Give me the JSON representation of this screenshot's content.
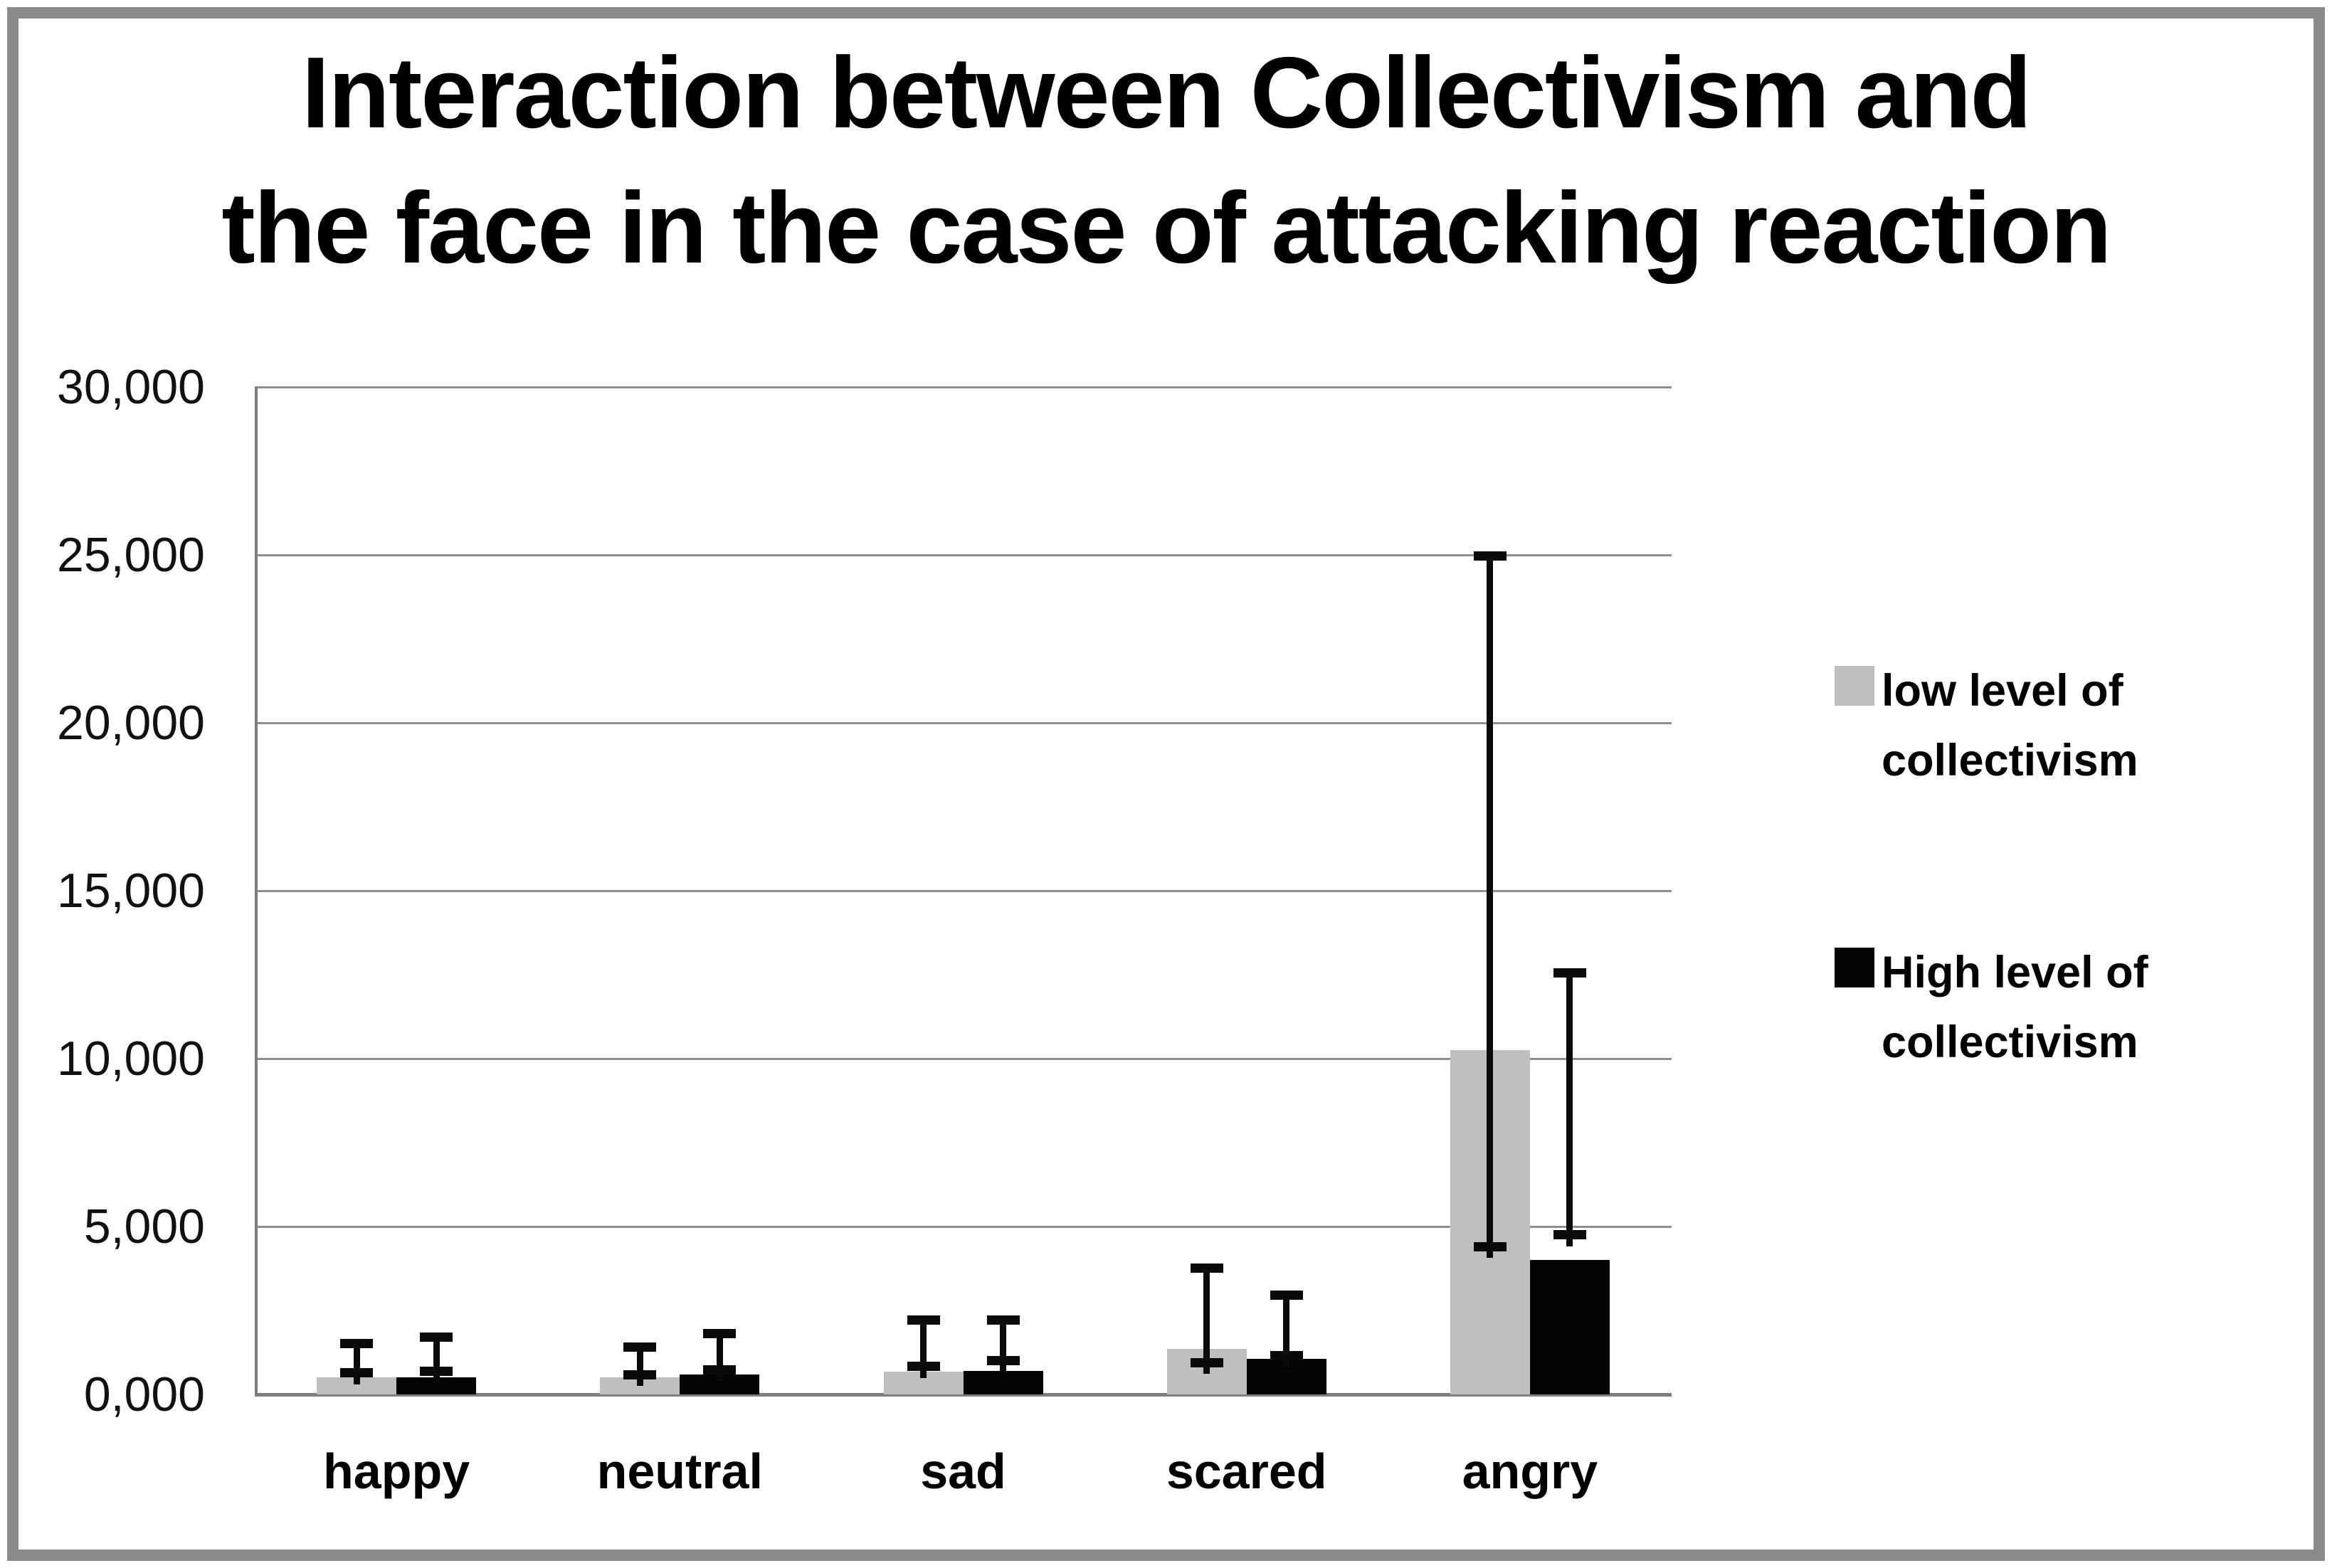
{
  "figure": {
    "title_line1": "Interaction between Collectivism and",
    "title_line2": "the face in the case of attacking reaction"
  },
  "chart_data": {
    "type": "bar",
    "title": "Interaction between Collectivism and the face in the case of attacking reaction",
    "categories": [
      "happy",
      "neutral",
      "sad",
      "scared",
      "angry"
    ],
    "series": [
      {
        "name": "low level of collectivism",
        "color": "#bfbfbf",
        "values": [
          500,
          500,
          680,
          1350,
          10250
        ],
        "error_high": [
          1650,
          1550,
          2350,
          3900,
          25100
        ],
        "error_low": [
          640,
          590,
          830,
          950,
          4400
        ]
      },
      {
        "name": "High level of collectivism",
        "color": "#050505",
        "values": [
          500,
          600,
          700,
          1050,
          4000
        ],
        "error_high": [
          1850,
          1950,
          2350,
          3100,
          12700
        ],
        "error_low": [
          680,
          740,
          1000,
          1150,
          4750
        ]
      }
    ],
    "xlabel": "",
    "ylabel": "",
    "ylim": [
      0,
      30000
    ],
    "ytick_step": 5000,
    "yticks": [
      {
        "value": 0,
        "label": "0,000"
      },
      {
        "value": 5000,
        "label": "5,000"
      },
      {
        "value": 10000,
        "label": "10,000"
      },
      {
        "value": 15000,
        "label": "15,000"
      },
      {
        "value": 20000,
        "label": "20,000"
      },
      {
        "value": 25000,
        "label": "25,000"
      },
      {
        "value": 30000,
        "label": "30,000"
      }
    ],
    "grid": true,
    "legend_position": "right",
    "error_bars": true
  },
  "legend": {
    "items": [
      {
        "label_line1": "low level of",
        "label_line2": "collectivism",
        "color": "#bfbfbf"
      },
      {
        "label_line1": "High level of",
        "label_line2": "collectivism",
        "color": "#050505"
      }
    ]
  }
}
